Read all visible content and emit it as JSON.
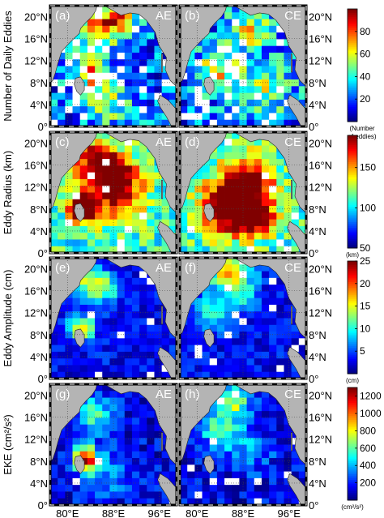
{
  "figure": {
    "lat_ticks": [
      "0°",
      "4°N",
      "8°N",
      "12°N",
      "16°N",
      "20°N"
    ],
    "lon_ticks": [
      "80°E",
      "88°E",
      "96°E"
    ],
    "land_color": "#b4b4b4",
    "nodata_color": "#ffffff",
    "colormap": "jet",
    "rows": [
      {
        "ylabel": "Number of Daily Eddies",
        "colorbar": {
          "range": [
            0,
            100
          ],
          "tick_values": [
            20,
            40,
            60,
            80
          ],
          "tick_labels": [
            "20",
            "40",
            "60",
            "80"
          ],
          "unit_lines": [
            "(Number",
            "of eddies)"
          ]
        },
        "panels": [
          {
            "letter": "(a)",
            "type": "AE"
          },
          {
            "letter": "(b)",
            "type": "CE"
          }
        ]
      },
      {
        "ylabel": "Eddy Radius (km)",
        "colorbar": {
          "range": [
            50,
            190
          ],
          "tick_values": [
            50,
            100,
            150
          ],
          "tick_labels": [
            "50",
            "100",
            "150"
          ],
          "unit_lines": [
            "(km)"
          ]
        },
        "panels": [
          {
            "letter": "(c)",
            "type": "AE"
          },
          {
            "letter": "(d)",
            "type": "CE"
          }
        ]
      },
      {
        "ylabel": "Eddy Amplitude (cm)",
        "colorbar": {
          "range": [
            0,
            25
          ],
          "tick_values": [
            5,
            10,
            15,
            20,
            25
          ],
          "tick_labels": [
            "5",
            "10",
            "15",
            "20",
            "25"
          ],
          "unit_lines": [
            "(cm)"
          ]
        },
        "panels": [
          {
            "letter": "(e)",
            "type": "AE"
          },
          {
            "letter": "(f)",
            "type": "CE"
          }
        ]
      },
      {
        "ylabel": "EKE (cm²/s²)",
        "colorbar": {
          "range": [
            0,
            1300
          ],
          "tick_values": [
            200,
            400,
            600,
            800,
            1000,
            1200
          ],
          "tick_labels": [
            "200",
            "400",
            "600",
            "800",
            "1000",
            "1200"
          ],
          "unit_lines": [
            "(cm²/s²)"
          ]
        },
        "panels": [
          {
            "letter": "(g)",
            "type": "AE"
          },
          {
            "letter": "(h)",
            "type": "CE"
          }
        ]
      }
    ]
  }
}
